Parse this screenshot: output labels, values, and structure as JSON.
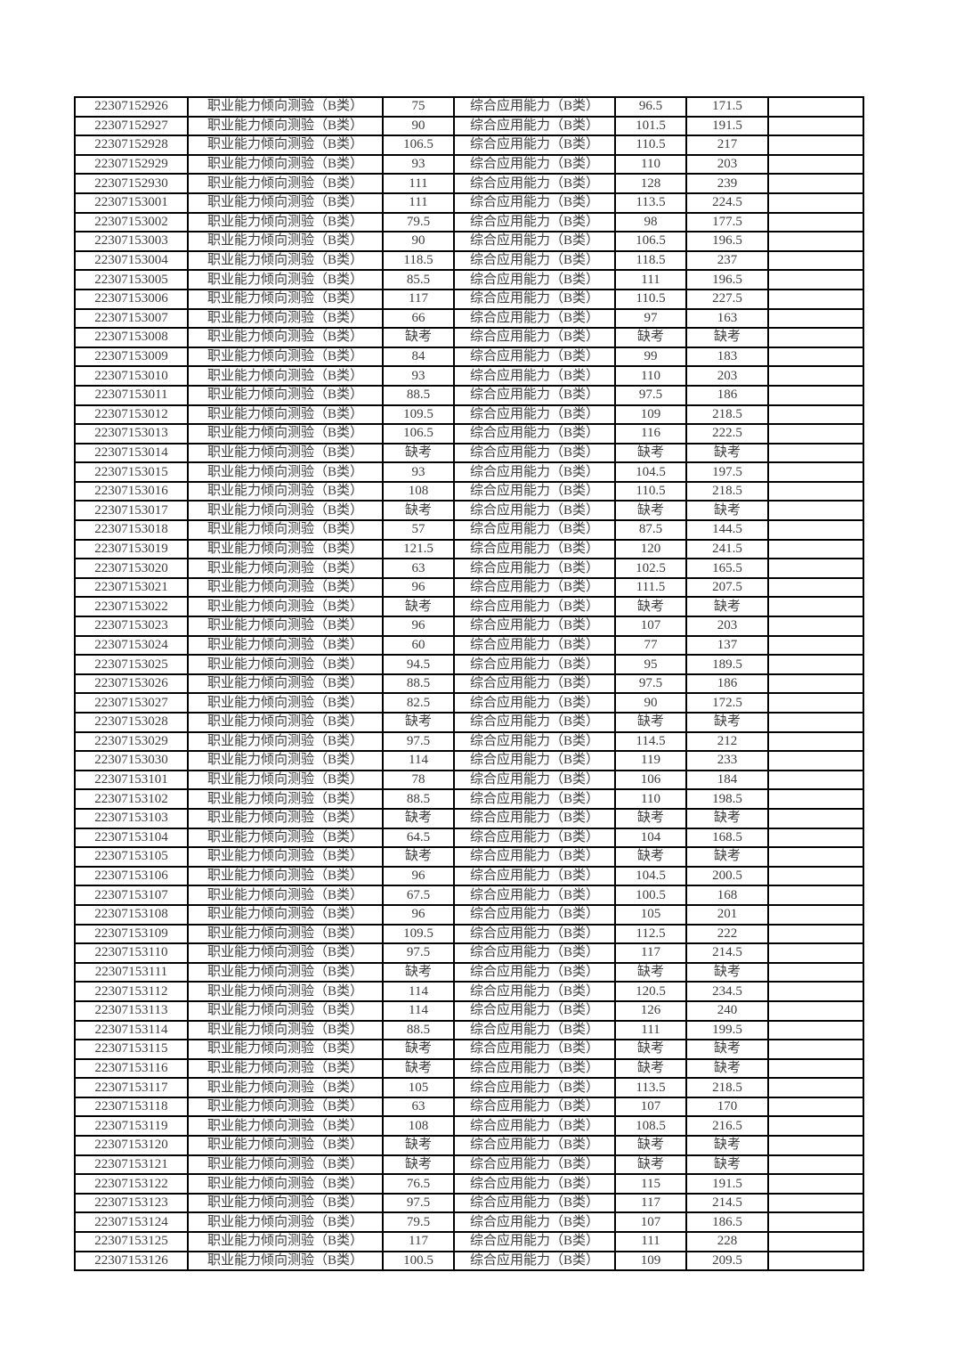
{
  "page": {
    "background_color": "#ffffff",
    "table_border_color": "#000000",
    "table_text_color": "#3c3c3c"
  },
  "table": {
    "subject1_label": "职业能力倾向测验（B类）",
    "subject2_label": "综合应用能力（B类）",
    "absent_label": "缺考",
    "rows": [
      [
        "22307152926",
        "75",
        "96.5",
        "171.5"
      ],
      [
        "22307152927",
        "90",
        "101.5",
        "191.5"
      ],
      [
        "22307152928",
        "106.5",
        "110.5",
        "217"
      ],
      [
        "22307152929",
        "93",
        "110",
        "203"
      ],
      [
        "22307152930",
        "111",
        "128",
        "239"
      ],
      [
        "22307153001",
        "111",
        "113.5",
        "224.5"
      ],
      [
        "22307153002",
        "79.5",
        "98",
        "177.5"
      ],
      [
        "22307153003",
        "90",
        "106.5",
        "196.5"
      ],
      [
        "22307153004",
        "118.5",
        "118.5",
        "237"
      ],
      [
        "22307153005",
        "85.5",
        "111",
        "196.5"
      ],
      [
        "22307153006",
        "117",
        "110.5",
        "227.5"
      ],
      [
        "22307153007",
        "66",
        "97",
        "163"
      ],
      [
        "22307153008",
        "缺考",
        "缺考",
        "缺考"
      ],
      [
        "22307153009",
        "84",
        "99",
        "183"
      ],
      [
        "22307153010",
        "93",
        "110",
        "203"
      ],
      [
        "22307153011",
        "88.5",
        "97.5",
        "186"
      ],
      [
        "22307153012",
        "109.5",
        "109",
        "218.5"
      ],
      [
        "22307153013",
        "106.5",
        "116",
        "222.5"
      ],
      [
        "22307153014",
        "缺考",
        "缺考",
        "缺考"
      ],
      [
        "22307153015",
        "93",
        "104.5",
        "197.5"
      ],
      [
        "22307153016",
        "108",
        "110.5",
        "218.5"
      ],
      [
        "22307153017",
        "缺考",
        "缺考",
        "缺考"
      ],
      [
        "22307153018",
        "57",
        "87.5",
        "144.5"
      ],
      [
        "22307153019",
        "121.5",
        "120",
        "241.5"
      ],
      [
        "22307153020",
        "63",
        "102.5",
        "165.5"
      ],
      [
        "22307153021",
        "96",
        "111.5",
        "207.5"
      ],
      [
        "22307153022",
        "缺考",
        "缺考",
        "缺考"
      ],
      [
        "22307153023",
        "96",
        "107",
        "203"
      ],
      [
        "22307153024",
        "60",
        "77",
        "137"
      ],
      [
        "22307153025",
        "94.5",
        "95",
        "189.5"
      ],
      [
        "22307153026",
        "88.5",
        "97.5",
        "186"
      ],
      [
        "22307153027",
        "82.5",
        "90",
        "172.5"
      ],
      [
        "22307153028",
        "缺考",
        "缺考",
        "缺考"
      ],
      [
        "22307153029",
        "97.5",
        "114.5",
        "212"
      ],
      [
        "22307153030",
        "114",
        "119",
        "233"
      ],
      [
        "22307153101",
        "78",
        "106",
        "184"
      ],
      [
        "22307153102",
        "88.5",
        "110",
        "198.5"
      ],
      [
        "22307153103",
        "缺考",
        "缺考",
        "缺考"
      ],
      [
        "22307153104",
        "64.5",
        "104",
        "168.5"
      ],
      [
        "22307153105",
        "缺考",
        "缺考",
        "缺考"
      ],
      [
        "22307153106",
        "96",
        "104.5",
        "200.5"
      ],
      [
        "22307153107",
        "67.5",
        "100.5",
        "168"
      ],
      [
        "22307153108",
        "96",
        "105",
        "201"
      ],
      [
        "22307153109",
        "109.5",
        "112.5",
        "222"
      ],
      [
        "22307153110",
        "97.5",
        "117",
        "214.5"
      ],
      [
        "22307153111",
        "缺考",
        "缺考",
        "缺考"
      ],
      [
        "22307153112",
        "114",
        "120.5",
        "234.5"
      ],
      [
        "22307153113",
        "114",
        "126",
        "240"
      ],
      [
        "22307153114",
        "88.5",
        "111",
        "199.5"
      ],
      [
        "22307153115",
        "缺考",
        "缺考",
        "缺考"
      ],
      [
        "22307153116",
        "缺考",
        "缺考",
        "缺考"
      ],
      [
        "22307153117",
        "105",
        "113.5",
        "218.5"
      ],
      [
        "22307153118",
        "63",
        "107",
        "170"
      ],
      [
        "22307153119",
        "108",
        "108.5",
        "216.5"
      ],
      [
        "22307153120",
        "缺考",
        "缺考",
        "缺考"
      ],
      [
        "22307153121",
        "缺考",
        "缺考",
        "缺考"
      ],
      [
        "22307153122",
        "76.5",
        "115",
        "191.5"
      ],
      [
        "22307153123",
        "97.5",
        "117",
        "214.5"
      ],
      [
        "22307153124",
        "79.5",
        "107",
        "186.5"
      ],
      [
        "22307153125",
        "117",
        "111",
        "228"
      ],
      [
        "22307153126",
        "100.5",
        "109",
        "209.5"
      ]
    ]
  }
}
